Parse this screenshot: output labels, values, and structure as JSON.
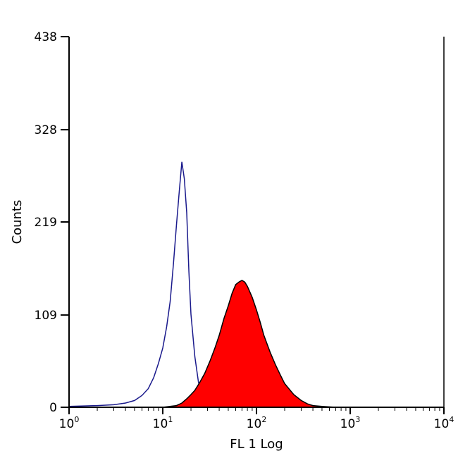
{
  "chart_data": {
    "type": "area",
    "xlabel": "FL 1 Log",
    "ylabel": "Counts",
    "xscale": "log",
    "xlim": [
      1,
      10000
    ],
    "ylim": [
      0,
      438
    ],
    "x_ticks": [
      {
        "base": "10",
        "exp": "0",
        "value": 1
      },
      {
        "base": "10",
        "exp": "1",
        "value": 10
      },
      {
        "base": "10",
        "exp": "2",
        "value": 100
      },
      {
        "base": "10",
        "exp": "3",
        "value": 1000
      },
      {
        "base": "10",
        "exp": "4",
        "value": 10000
      }
    ],
    "y_ticks": [
      "0",
      "109",
      "219",
      "328",
      "438"
    ],
    "grid": false,
    "colors": {
      "control_line": "#1a1a8c",
      "sample_fill": "#ff0000",
      "sample_edge": "#000000"
    },
    "series": [
      {
        "style": "outline",
        "x": [
          1,
          2,
          3,
          4,
          5,
          6,
          7,
          8,
          9,
          10,
          11,
          12,
          13,
          14,
          15,
          16,
          17,
          18,
          19,
          20,
          22,
          24,
          26,
          28,
          30,
          32,
          35,
          40,
          50,
          60,
          80,
          100
        ],
        "y": [
          1,
          2,
          3,
          5,
          8,
          14,
          22,
          35,
          52,
          70,
          95,
          125,
          170,
          215,
          255,
          290,
          270,
          230,
          160,
          110,
          60,
          30,
          15,
          8,
          5,
          3,
          2,
          1,
          1,
          0,
          0,
          0
        ]
      },
      {
        "style": "filled",
        "x": [
          10,
          14,
          16,
          18,
          20,
          22,
          25,
          28,
          32,
          36,
          40,
          45,
          50,
          55,
          60,
          65,
          70,
          75,
          80,
          90,
          100,
          110,
          120,
          140,
          160,
          180,
          200,
          250,
          300,
          350,
          400,
          500,
          700
        ],
        "y": [
          0,
          2,
          5,
          10,
          15,
          20,
          30,
          40,
          55,
          70,
          85,
          105,
          120,
          135,
          145,
          148,
          150,
          148,
          143,
          130,
          115,
          100,
          85,
          65,
          50,
          38,
          28,
          15,
          8,
          4,
          2,
          1,
          0
        ]
      }
    ]
  }
}
